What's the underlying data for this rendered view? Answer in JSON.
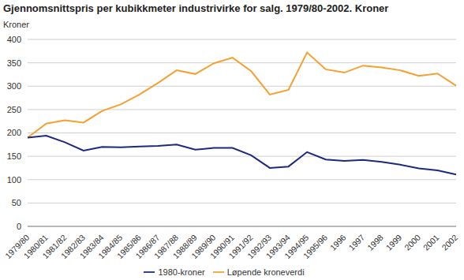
{
  "chart_data": {
    "type": "line",
    "title": "Gjennomsnittspris per kubikkmeter industrivirke for salg. 1979/80-2002. Kroner",
    "y_label": "Kroner",
    "categories": [
      "1979/80",
      "1980/81",
      "1981/82",
      "1982/83",
      "1983/84",
      "1984/85",
      "1985/86",
      "1986/87",
      "1987/88",
      "1988/89",
      "1989/90",
      "1990/91",
      "1991/92",
      "1992/93",
      "1993/94",
      "1994/95",
      "1995/96",
      "1996",
      "1997",
      "1998",
      "1999",
      "2000",
      "2001",
      "2002"
    ],
    "series": [
      {
        "name": "Løpende kroneverdi",
        "color": "#f5a030",
        "values": [
          190,
          220,
          227,
          222,
          247,
          261,
          282,
          307,
          334,
          326,
          349,
          361,
          332,
          282,
          292,
          372,
          336,
          329,
          344,
          340,
          334,
          322,
          327,
          301
        ]
      },
      {
        "name": "1980-kroner",
        "color": "#1b2a7c",
        "values": [
          190,
          194,
          180,
          162,
          170,
          169,
          171,
          172,
          175,
          164,
          168,
          168,
          152,
          125,
          128,
          159,
          143,
          140,
          142,
          138,
          132,
          124,
          120,
          111
        ]
      }
    ],
    "ylim": [
      0,
      400
    ],
    "yticks": [
      0,
      50,
      100,
      150,
      200,
      250,
      300,
      350,
      400
    ],
    "grid": true,
    "legend": "bottom"
  }
}
